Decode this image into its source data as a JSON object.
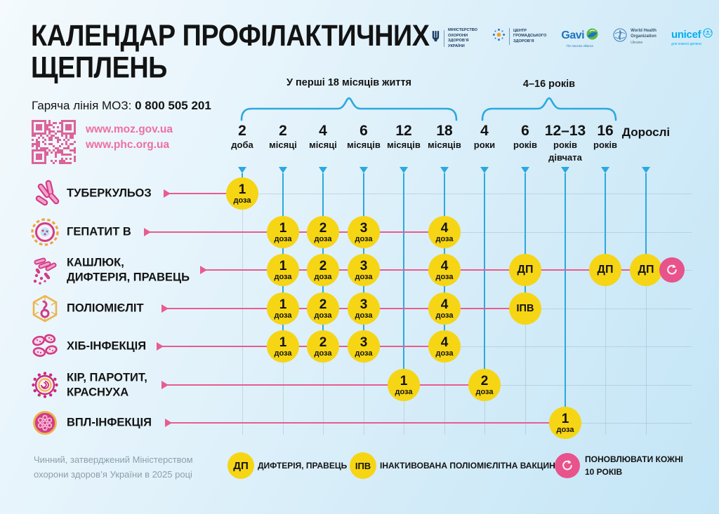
{
  "header": {
    "title": "КАЛЕНДАР ПРОФІЛАКТИЧНИХ\nЩЕПЛЕНЬ",
    "hotline_label": "Гаряча лінія МОЗ:",
    "hotline_number": "0 800 505 201",
    "urls": [
      "www.moz.gov.ua",
      "www.phc.org.ua"
    ],
    "logos": [
      {
        "icon": "trident-icon",
        "lines": "МІНІСТЕРСТВО\nОХОРОНИ\nЗДОРОВ’Я\nУКРАЇНИ"
      },
      {
        "icon": "starburst-icon",
        "lines": "ЦЕНТР\nГРОМАДСЬКОГО\nЗДОРОВ’Я"
      },
      {
        "icon": "gavi-globe-icon",
        "text": "Gavi",
        "sub": "The Vaccine Alliance"
      },
      {
        "icon": "who-emblem-icon",
        "lines": "World Health\nOrganization",
        "sub": "Ukraine"
      },
      {
        "icon": "unicef-globe-icon",
        "text": "unicef",
        "sub": "для кожної дитини"
      }
    ]
  },
  "timeline": {
    "brackets": [
      {
        "label": "У перші 18 місяців життя"
      },
      {
        "label": "4–16 років"
      }
    ],
    "columns": [
      {
        "num": "2",
        "unit": "доба"
      },
      {
        "num": "2",
        "unit": "місяці"
      },
      {
        "num": "4",
        "unit": "місяці"
      },
      {
        "num": "6",
        "unit": "місяців"
      },
      {
        "num": "12",
        "unit": "місяців"
      },
      {
        "num": "18",
        "unit": "місяців"
      },
      {
        "num": "4",
        "unit": "роки"
      },
      {
        "num": "6",
        "unit": "років"
      },
      {
        "num": "12–13",
        "unit": "років",
        "unit2": "дівчата"
      },
      {
        "num": "16",
        "unit": "років"
      },
      {
        "num": "Дорослі",
        "unit": ""
      }
    ]
  },
  "schedule": {
    "rows": [
      {
        "disease": "ТУБЕРКУЛЬОЗ",
        "icon": "tuberculosis-icon",
        "doses": [
          {
            "col": 0,
            "label": "1",
            "sub": "доза"
          }
        ]
      },
      {
        "disease": "ГЕПАТИТ В",
        "icon": "hepatitis-icon",
        "doses": [
          {
            "col": 1,
            "label": "1",
            "sub": "доза"
          },
          {
            "col": 2,
            "label": "2",
            "sub": "доза"
          },
          {
            "col": 3,
            "label": "3",
            "sub": "доза"
          },
          {
            "col": 5,
            "label": "4",
            "sub": "доза"
          }
        ]
      },
      {
        "disease": "КАШЛЮК,\nДИФТЕРІЯ, ПРАВЕЦЬ",
        "icon": "pertussis-icon",
        "repeat_marker": true,
        "doses": [
          {
            "col": 1,
            "label": "1",
            "sub": "доза"
          },
          {
            "col": 2,
            "label": "2",
            "sub": "доза"
          },
          {
            "col": 3,
            "label": "3",
            "sub": "доза"
          },
          {
            "col": 5,
            "label": "4",
            "sub": "доза"
          },
          {
            "col": 7,
            "label": "ДП"
          },
          {
            "col": 9,
            "label": "ДП"
          },
          {
            "col": 10,
            "label": "ДП"
          }
        ]
      },
      {
        "disease": "ПОЛІОМІЄЛІТ",
        "icon": "polio-icon",
        "doses": [
          {
            "col": 1,
            "label": "1",
            "sub": "доза"
          },
          {
            "col": 2,
            "label": "2",
            "sub": "доза"
          },
          {
            "col": 3,
            "label": "3",
            "sub": "доза"
          },
          {
            "col": 5,
            "label": "4",
            "sub": "доза"
          },
          {
            "col": 7,
            "label": "ІПВ"
          }
        ]
      },
      {
        "disease": "ХІБ-ІНФЕКЦІЯ",
        "icon": "hib-icon",
        "doses": [
          {
            "col": 1,
            "label": "1",
            "sub": "доза"
          },
          {
            "col": 2,
            "label": "2",
            "sub": "доза"
          },
          {
            "col": 3,
            "label": "3",
            "sub": "доза"
          },
          {
            "col": 5,
            "label": "4",
            "sub": "доза"
          }
        ]
      },
      {
        "disease": "КІР, ПАРОТИТ,\nКРАСНУХА",
        "icon": "measles-icon",
        "doses": [
          {
            "col": 4,
            "label": "1",
            "sub": "доза"
          },
          {
            "col": 6,
            "label": "2",
            "sub": "доза"
          }
        ]
      },
      {
        "disease": "ВПЛ-ІНФЕКЦІЯ",
        "icon": "hpv-icon",
        "doses": [
          {
            "col": 8,
            "label": "1",
            "sub": "доза"
          }
        ]
      }
    ]
  },
  "legend": [
    {
      "badge": "ДП",
      "type": "yellow",
      "label": "ДИФТЕРІЯ, ПРАВЕЦЬ"
    },
    {
      "badge": "ІПВ",
      "type": "yellow",
      "label": "ІНАКТИВОВАНА ПОЛІОМІЄЛІТНА ВАКЦИНА"
    },
    {
      "badge": "",
      "type": "refresh",
      "label": "ПОНОВЛЮВАТИ КОЖНІ\n10 РОКІВ"
    }
  ],
  "footer": "Чинний, затверджений Міністерством\nохорони здоров’я України в 2025 році",
  "colors": {
    "accent_pink": "#E8538C",
    "accent_blue": "#2BA9DF",
    "dose_yellow": "#F6D514",
    "qr_pink": "#DC6398",
    "title_black": "#131313"
  }
}
